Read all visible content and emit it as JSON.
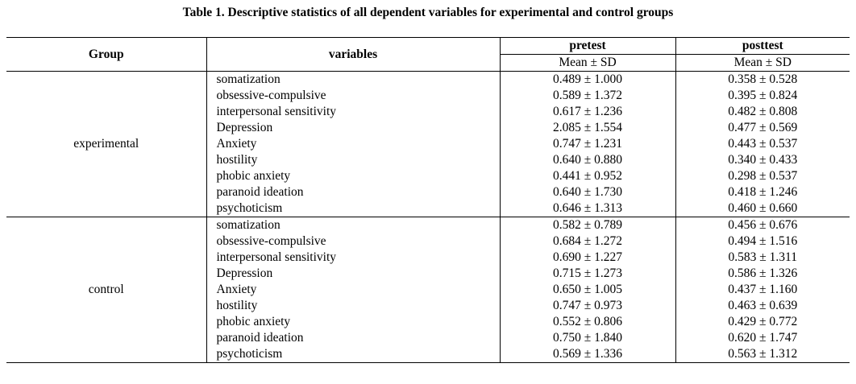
{
  "caption": "Table 1. Descriptive statistics of all dependent variables for experimental and control groups",
  "headers": {
    "group": "Group",
    "variables": "variables",
    "pretest": "pretest",
    "posttest": "posttest",
    "pretest_sub": "Mean ± SD",
    "posttest_sub": "Mean ± SD"
  },
  "groups": [
    {
      "name": "experimental",
      "rows": [
        {
          "variable": "somatization",
          "pretest": "0.489 ± 1.000",
          "posttest": "0.358 ± 0.528"
        },
        {
          "variable": "obsessive-compulsive",
          "pretest": "0.589 ± 1.372",
          "posttest": "0.395 ± 0.824"
        },
        {
          "variable": "interpersonal sensitivity",
          "pretest": "0.617 ± 1.236",
          "posttest": "0.482 ± 0.808"
        },
        {
          "variable": "Depression",
          "pretest": "2.085 ± 1.554",
          "posttest": "0.477 ± 0.569"
        },
        {
          "variable": "Anxiety",
          "pretest": "0.747 ± 1.231",
          "posttest": "0.443 ± 0.537"
        },
        {
          "variable": "hostility",
          "pretest": "0.640 ± 0.880",
          "posttest": "0.340 ± 0.433"
        },
        {
          "variable": "phobic anxiety",
          "pretest": "0.441 ± 0.952",
          "posttest": "0.298 ± 0.537"
        },
        {
          "variable": "paranoid ideation",
          "pretest": "0.640 ± 1.730",
          "posttest": "0.418 ± 1.246"
        },
        {
          "variable": "psychoticism",
          "pretest": "0.646 ± 1.313",
          "posttest": "0.460 ± 0.660"
        }
      ]
    },
    {
      "name": "control",
      "rows": [
        {
          "variable": "somatization",
          "pretest": "0.582 ± 0.789",
          "posttest": "0.456 ± 0.676"
        },
        {
          "variable": "obsessive-compulsive",
          "pretest": "0.684 ± 1.272",
          "posttest": "0.494 ± 1.516"
        },
        {
          "variable": "interpersonal sensitivity",
          "pretest": "0.690 ± 1.227",
          "posttest": "0.583  ± 1.311"
        },
        {
          "variable": "Depression",
          "pretest": "0.715 ± 1.273",
          "posttest": "0.586 ± 1.326"
        },
        {
          "variable": "Anxiety",
          "pretest": "0.650 ± 1.005",
          "posttest": "0.437 ± 1.160"
        },
        {
          "variable": "hostility",
          "pretest": "0.747 ± 0.973",
          "posttest": "0.463 ± 0.639"
        },
        {
          "variable": "phobic anxiety",
          "pretest": "0.552 ± 0.806",
          "posttest": "0.429 ± 0.772"
        },
        {
          "variable": "paranoid ideation",
          "pretest": "0.750 ± 1.840",
          "posttest": "0.620 ± 1.747"
        },
        {
          "variable": "psychoticism",
          "pretest": "0.569 ± 1.336",
          "posttest": "0.563 ± 1.312"
        }
      ]
    }
  ]
}
